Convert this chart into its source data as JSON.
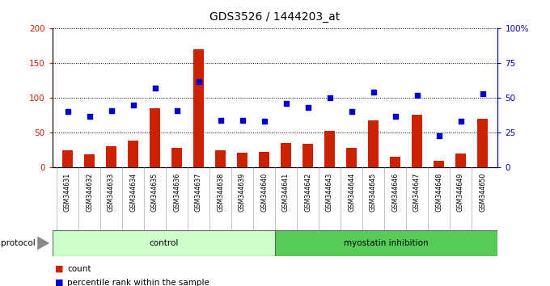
{
  "title": "GDS3526 / 1444203_at",
  "categories": [
    "GSM344631",
    "GSM344632",
    "GSM344633",
    "GSM344634",
    "GSM344635",
    "GSM344636",
    "GSM344637",
    "GSM344638",
    "GSM344639",
    "GSM344640",
    "GSM344641",
    "GSM344642",
    "GSM344643",
    "GSM344644",
    "GSM344645",
    "GSM344646",
    "GSM344647",
    "GSM344648",
    "GSM344649",
    "GSM344650"
  ],
  "bar_values": [
    24,
    19,
    30,
    38,
    85,
    28,
    170,
    25,
    21,
    22,
    35,
    34,
    52,
    28,
    68,
    15,
    76,
    10,
    20,
    70
  ],
  "dot_values_pct": [
    40,
    37,
    41,
    45,
    57,
    41,
    62,
    34,
    34,
    33,
    46,
    43,
    50,
    40,
    54,
    37,
    52,
    23,
    33,
    53
  ],
  "bar_color": "#cc2200",
  "dot_color": "#0000cc",
  "ylim_left": [
    0,
    200
  ],
  "ylim_right": [
    0,
    100
  ],
  "yticks_left": [
    0,
    50,
    100,
    150,
    200
  ],
  "yticks_right": [
    0,
    25,
    50,
    75,
    100
  ],
  "ytick_labels_right": [
    "0",
    "25",
    "50",
    "75",
    "100%"
  ],
  "n_control": 10,
  "control_label": "control",
  "myostatin_label": "myostatin inhibition",
  "protocol_label": "protocol",
  "legend_count_label": "count",
  "legend_pct_label": "percentile rank within the sample",
  "control_color": "#ccffcc",
  "myostatin_color": "#55cc55",
  "tick_label_bg": "#d8d8d8",
  "title_fontsize": 10,
  "bar_width": 0.5
}
